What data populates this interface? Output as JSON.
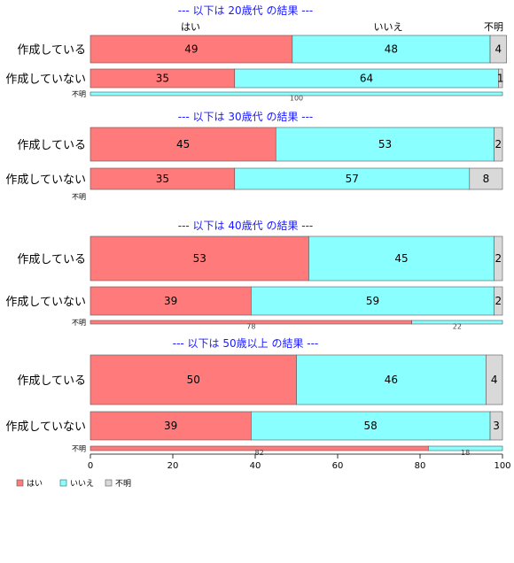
{
  "chart_data": {
    "type": "bar",
    "orientation": "horizontal",
    "stacked": true,
    "xlim": [
      0,
      100
    ],
    "x_ticks": [
      "0",
      "20",
      "40",
      "60",
      "80",
      "100"
    ],
    "category_headers": [
      "はい",
      "いいえ",
      "不明"
    ],
    "legend": [
      "はい",
      "いいえ",
      "不明"
    ],
    "colors": {
      "はい": "#ff7b7b",
      "いいえ": "#8affff",
      "不明": "#d9d9d9"
    },
    "groups": [
      {
        "title": "--- 以下は 20歳代 の結果 ---",
        "rows": [
          {
            "label": "作成している",
            "values": [
              49,
              48,
              4
            ],
            "labels": [
              "49",
              "48",
              "4"
            ]
          },
          {
            "label": "作成していない",
            "values": [
              35,
              64,
              1
            ],
            "labels": [
              "35",
              "64",
              "1"
            ]
          },
          {
            "label": "不明",
            "values": [
              0,
              100,
              0
            ],
            "labels": [
              "",
              "100",
              ""
            ]
          }
        ]
      },
      {
        "title": "--- 以下は 30歳代 の結果 ---",
        "rows": [
          {
            "label": "作成している",
            "values": [
              45,
              53,
              2
            ],
            "labels": [
              "45",
              "53",
              "2"
            ]
          },
          {
            "label": "作成していない",
            "values": [
              35,
              57,
              8
            ],
            "labels": [
              "35",
              "57",
              "8"
            ]
          },
          {
            "label": "不明",
            "values": [
              0,
              0,
              0
            ],
            "labels": [
              "",
              "",
              ""
            ]
          }
        ]
      },
      {
        "title": "--- 以下は 40歳代 の結果 ---",
        "rows": [
          {
            "label": "作成している",
            "values": [
              53,
              45,
              2
            ],
            "labels": [
              "53",
              "45",
              "2"
            ]
          },
          {
            "label": "作成していない",
            "values": [
              39,
              59,
              2
            ],
            "labels": [
              "39",
              "59",
              "2"
            ]
          },
          {
            "label": "不明",
            "values": [
              78,
              22,
              0
            ],
            "labels": [
              "78",
              "22",
              ""
            ]
          }
        ]
      },
      {
        "title": "--- 以下は 50歳以上 の結果 ---",
        "rows": [
          {
            "label": "作成している",
            "values": [
              50,
              46,
              4
            ],
            "labels": [
              "50",
              "46",
              "4"
            ]
          },
          {
            "label": "作成していない",
            "values": [
              39,
              58,
              3
            ],
            "labels": [
              "39",
              "58",
              "3"
            ]
          },
          {
            "label": "不明",
            "values": [
              82,
              18,
              0
            ],
            "labels": [
              "82",
              "18",
              ""
            ]
          }
        ]
      }
    ]
  }
}
